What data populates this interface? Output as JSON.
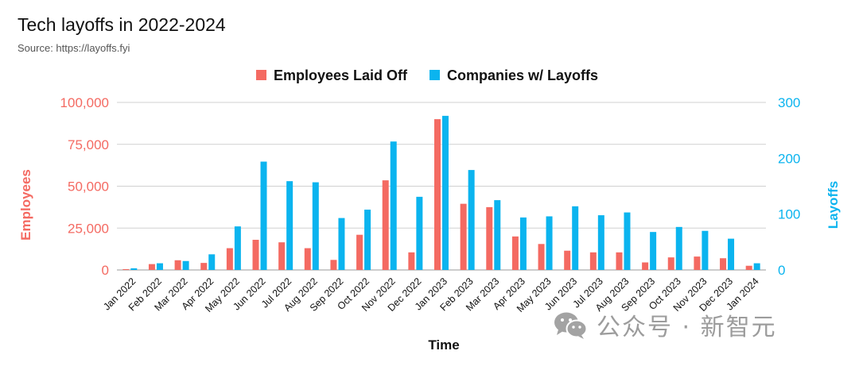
{
  "title": "Tech layoffs in 2022-2024",
  "subtitle": "Source: https://layoffs.fyi",
  "watermark": "公众号 · 新智元",
  "colors": {
    "employees": "#F46A62",
    "companies": "#0BB4EF"
  },
  "chart_data": {
    "type": "bar",
    "categories": [
      "Jan 2022",
      "Feb 2022",
      "Mar 2022",
      "Apr 2022",
      "May 2022",
      "Jun 2022",
      "Jul 2022",
      "Aug 2022",
      "Sep 2022",
      "Oct 2022",
      "Nov 2022",
      "Dec 2022",
      "Jan 2023",
      "Feb 2023",
      "Mar 2023",
      "Apr 2023",
      "May 2023",
      "Jun 2023",
      "Jul 2023",
      "Aug 2023",
      "Sep 2023",
      "Oct 2023",
      "Nov 2023",
      "Dec 2023",
      "Jan 2024"
    ],
    "series": [
      {
        "name": "Employees Laid Off",
        "axis": "left",
        "values": [
          500,
          3500,
          5800,
          4200,
          13000,
          18000,
          16500,
          13000,
          6000,
          21000,
          53500,
          10500,
          90000,
          39500,
          37500,
          20000,
          15500,
          11500,
          10500,
          10500,
          4500,
          7500,
          8000,
          7000,
          2500
        ]
      },
      {
        "name": "Companies w/ Layoffs",
        "axis": "right",
        "values": [
          3,
          12,
          16,
          28,
          78,
          194,
          159,
          157,
          93,
          108,
          230,
          131,
          276,
          179,
          125,
          94,
          96,
          114,
          98,
          103,
          68,
          77,
          70,
          56,
          12
        ]
      }
    ],
    "xlabel": "Time",
    "ylabel": "Employees",
    "y2label": "Layoffs",
    "ylim": [
      0,
      100000
    ],
    "y2lim": [
      0,
      300
    ],
    "yticks": [
      "0",
      "25,000",
      "50,000",
      "75,000",
      "100,000"
    ],
    "y2ticks": [
      "0",
      "100",
      "200",
      "300"
    ],
    "legend": "top-center",
    "grid": true
  }
}
